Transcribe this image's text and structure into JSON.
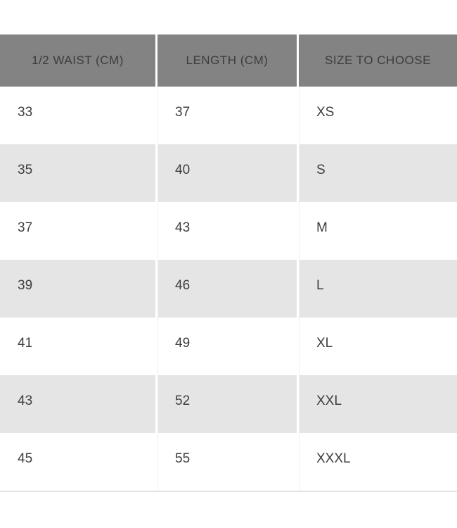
{
  "chart_data": {
    "type": "table",
    "columns": [
      "1/2 WAIST (CM)",
      "LENGTH (CM)",
      "SIZE TO CHOOSE"
    ],
    "rows": [
      [
        "33",
        "37",
        "XS"
      ],
      [
        "35",
        "40",
        "S"
      ],
      [
        "37",
        "43",
        "M"
      ],
      [
        "39",
        "46",
        "L"
      ],
      [
        "41",
        "49",
        "XL"
      ],
      [
        "43",
        "52",
        "XXL"
      ],
      [
        "45",
        "55",
        "XXXL"
      ]
    ],
    "layout": {
      "header_position": "top",
      "row_striping": "white-and-light-gray-alternating",
      "grid": "white 3px vertical gaps between columns, no horizontal rules"
    }
  },
  "table": {
    "headers": [
      {
        "label": "1/2 WAIST (CM)"
      },
      {
        "label": "LENGTH (CM)"
      },
      {
        "label": "SIZE TO CHOOSE"
      }
    ],
    "rows": [
      [
        "33",
        "37",
        "XS"
      ],
      [
        "35",
        "40",
        "S"
      ],
      [
        "37",
        "43",
        "M"
      ],
      [
        "39",
        "46",
        "L"
      ],
      [
        "41",
        "49",
        "XL"
      ],
      [
        "43",
        "52",
        "XXL"
      ],
      [
        "45",
        "55",
        "XXXL"
      ]
    ]
  },
  "colors": {
    "page_background": "#ffffff",
    "header_background": "#838383",
    "header_text": "#3c3c3c",
    "row_background": "#ffffff",
    "row_alt_background": "#e5e5e5",
    "body_text": "#3e3e3e",
    "column_gap": "#ffffff",
    "table_bottom_border": "#e3e3e3"
  }
}
